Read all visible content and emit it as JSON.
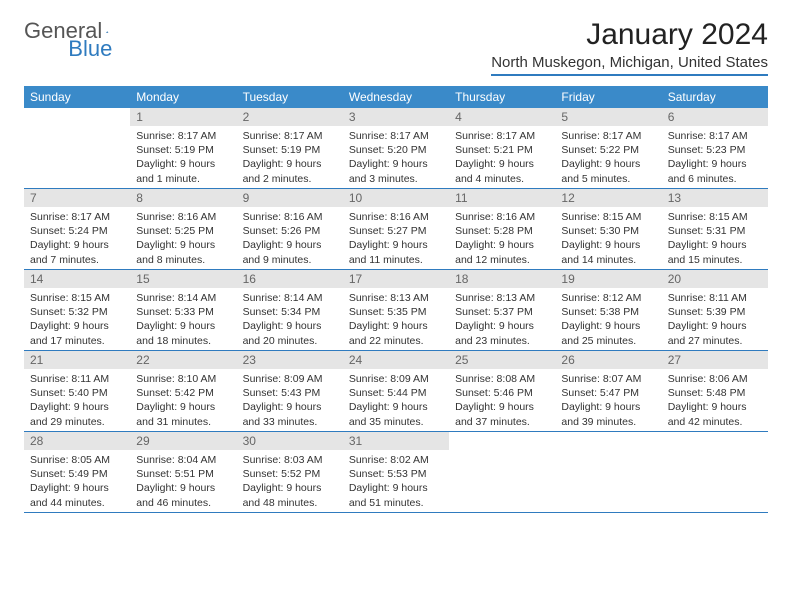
{
  "brand": {
    "part1": "General",
    "part2": "Blue"
  },
  "title": "January 2024",
  "location": "North Muskegon, Michigan, United States",
  "header_bg": "#3a8ac9",
  "accent": "#2f7bbf",
  "weekdays": [
    "Sunday",
    "Monday",
    "Tuesday",
    "Wednesday",
    "Thursday",
    "Friday",
    "Saturday"
  ],
  "weeks": [
    [
      {
        "n": "",
        "sr": "",
        "ss": "",
        "dl1": "",
        "dl2": ""
      },
      {
        "n": "1",
        "sr": "Sunrise: 8:17 AM",
        "ss": "Sunset: 5:19 PM",
        "dl1": "Daylight: 9 hours",
        "dl2": "and 1 minute."
      },
      {
        "n": "2",
        "sr": "Sunrise: 8:17 AM",
        "ss": "Sunset: 5:19 PM",
        "dl1": "Daylight: 9 hours",
        "dl2": "and 2 minutes."
      },
      {
        "n": "3",
        "sr": "Sunrise: 8:17 AM",
        "ss": "Sunset: 5:20 PM",
        "dl1": "Daylight: 9 hours",
        "dl2": "and 3 minutes."
      },
      {
        "n": "4",
        "sr": "Sunrise: 8:17 AM",
        "ss": "Sunset: 5:21 PM",
        "dl1": "Daylight: 9 hours",
        "dl2": "and 4 minutes."
      },
      {
        "n": "5",
        "sr": "Sunrise: 8:17 AM",
        "ss": "Sunset: 5:22 PM",
        "dl1": "Daylight: 9 hours",
        "dl2": "and 5 minutes."
      },
      {
        "n": "6",
        "sr": "Sunrise: 8:17 AM",
        "ss": "Sunset: 5:23 PM",
        "dl1": "Daylight: 9 hours",
        "dl2": "and 6 minutes."
      }
    ],
    [
      {
        "n": "7",
        "sr": "Sunrise: 8:17 AM",
        "ss": "Sunset: 5:24 PM",
        "dl1": "Daylight: 9 hours",
        "dl2": "and 7 minutes."
      },
      {
        "n": "8",
        "sr": "Sunrise: 8:16 AM",
        "ss": "Sunset: 5:25 PM",
        "dl1": "Daylight: 9 hours",
        "dl2": "and 8 minutes."
      },
      {
        "n": "9",
        "sr": "Sunrise: 8:16 AM",
        "ss": "Sunset: 5:26 PM",
        "dl1": "Daylight: 9 hours",
        "dl2": "and 9 minutes."
      },
      {
        "n": "10",
        "sr": "Sunrise: 8:16 AM",
        "ss": "Sunset: 5:27 PM",
        "dl1": "Daylight: 9 hours",
        "dl2": "and 11 minutes."
      },
      {
        "n": "11",
        "sr": "Sunrise: 8:16 AM",
        "ss": "Sunset: 5:28 PM",
        "dl1": "Daylight: 9 hours",
        "dl2": "and 12 minutes."
      },
      {
        "n": "12",
        "sr": "Sunrise: 8:15 AM",
        "ss": "Sunset: 5:30 PM",
        "dl1": "Daylight: 9 hours",
        "dl2": "and 14 minutes."
      },
      {
        "n": "13",
        "sr": "Sunrise: 8:15 AM",
        "ss": "Sunset: 5:31 PM",
        "dl1": "Daylight: 9 hours",
        "dl2": "and 15 minutes."
      }
    ],
    [
      {
        "n": "14",
        "sr": "Sunrise: 8:15 AM",
        "ss": "Sunset: 5:32 PM",
        "dl1": "Daylight: 9 hours",
        "dl2": "and 17 minutes."
      },
      {
        "n": "15",
        "sr": "Sunrise: 8:14 AM",
        "ss": "Sunset: 5:33 PM",
        "dl1": "Daylight: 9 hours",
        "dl2": "and 18 minutes."
      },
      {
        "n": "16",
        "sr": "Sunrise: 8:14 AM",
        "ss": "Sunset: 5:34 PM",
        "dl1": "Daylight: 9 hours",
        "dl2": "and 20 minutes."
      },
      {
        "n": "17",
        "sr": "Sunrise: 8:13 AM",
        "ss": "Sunset: 5:35 PM",
        "dl1": "Daylight: 9 hours",
        "dl2": "and 22 minutes."
      },
      {
        "n": "18",
        "sr": "Sunrise: 8:13 AM",
        "ss": "Sunset: 5:37 PM",
        "dl1": "Daylight: 9 hours",
        "dl2": "and 23 minutes."
      },
      {
        "n": "19",
        "sr": "Sunrise: 8:12 AM",
        "ss": "Sunset: 5:38 PM",
        "dl1": "Daylight: 9 hours",
        "dl2": "and 25 minutes."
      },
      {
        "n": "20",
        "sr": "Sunrise: 8:11 AM",
        "ss": "Sunset: 5:39 PM",
        "dl1": "Daylight: 9 hours",
        "dl2": "and 27 minutes."
      }
    ],
    [
      {
        "n": "21",
        "sr": "Sunrise: 8:11 AM",
        "ss": "Sunset: 5:40 PM",
        "dl1": "Daylight: 9 hours",
        "dl2": "and 29 minutes."
      },
      {
        "n": "22",
        "sr": "Sunrise: 8:10 AM",
        "ss": "Sunset: 5:42 PM",
        "dl1": "Daylight: 9 hours",
        "dl2": "and 31 minutes."
      },
      {
        "n": "23",
        "sr": "Sunrise: 8:09 AM",
        "ss": "Sunset: 5:43 PM",
        "dl1": "Daylight: 9 hours",
        "dl2": "and 33 minutes."
      },
      {
        "n": "24",
        "sr": "Sunrise: 8:09 AM",
        "ss": "Sunset: 5:44 PM",
        "dl1": "Daylight: 9 hours",
        "dl2": "and 35 minutes."
      },
      {
        "n": "25",
        "sr": "Sunrise: 8:08 AM",
        "ss": "Sunset: 5:46 PM",
        "dl1": "Daylight: 9 hours",
        "dl2": "and 37 minutes."
      },
      {
        "n": "26",
        "sr": "Sunrise: 8:07 AM",
        "ss": "Sunset: 5:47 PM",
        "dl1": "Daylight: 9 hours",
        "dl2": "and 39 minutes."
      },
      {
        "n": "27",
        "sr": "Sunrise: 8:06 AM",
        "ss": "Sunset: 5:48 PM",
        "dl1": "Daylight: 9 hours",
        "dl2": "and 42 minutes."
      }
    ],
    [
      {
        "n": "28",
        "sr": "Sunrise: 8:05 AM",
        "ss": "Sunset: 5:49 PM",
        "dl1": "Daylight: 9 hours",
        "dl2": "and 44 minutes."
      },
      {
        "n": "29",
        "sr": "Sunrise: 8:04 AM",
        "ss": "Sunset: 5:51 PM",
        "dl1": "Daylight: 9 hours",
        "dl2": "and 46 minutes."
      },
      {
        "n": "30",
        "sr": "Sunrise: 8:03 AM",
        "ss": "Sunset: 5:52 PM",
        "dl1": "Daylight: 9 hours",
        "dl2": "and 48 minutes."
      },
      {
        "n": "31",
        "sr": "Sunrise: 8:02 AM",
        "ss": "Sunset: 5:53 PM",
        "dl1": "Daylight: 9 hours",
        "dl2": "and 51 minutes."
      },
      {
        "n": "",
        "sr": "",
        "ss": "",
        "dl1": "",
        "dl2": ""
      },
      {
        "n": "",
        "sr": "",
        "ss": "",
        "dl1": "",
        "dl2": ""
      },
      {
        "n": "",
        "sr": "",
        "ss": "",
        "dl1": "",
        "dl2": ""
      }
    ]
  ]
}
